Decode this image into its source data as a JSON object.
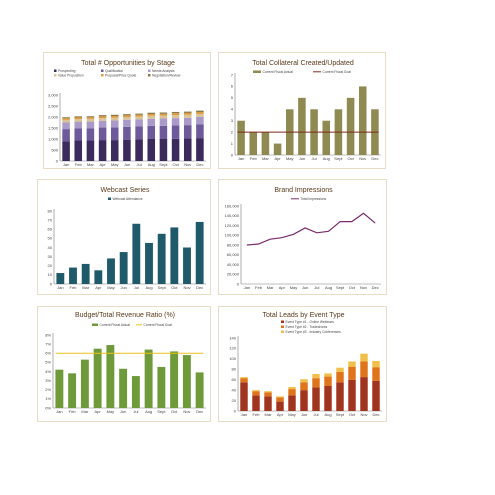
{
  "chart_data": [
    {
      "id": "opportunities",
      "type": "bar",
      "stacked": true,
      "title": "Total # Opportunities by Stage",
      "categories": [
        "Jan",
        "Feb",
        "Mar",
        "Apr",
        "May",
        "Jun",
        "Jul",
        "Aug",
        "Sept",
        "Oct",
        "Nov",
        "Dec"
      ],
      "ylim": [
        0,
        3000
      ],
      "yticks": [
        0,
        500,
        1000,
        1500,
        2000,
        2500,
        3000
      ],
      "ytick_labels": [
        "0",
        "500",
        "1,000",
        "1,500",
        "2,000",
        "2,500",
        "3,000"
      ],
      "legend_position": "top",
      "series": [
        {
          "name": "Prospecting",
          "color": "#3b2a5c",
          "values": [
            900,
            930,
            930,
            950,
            950,
            970,
            980,
            1000,
            1000,
            1010,
            1020,
            1040
          ]
        },
        {
          "name": "Qualification",
          "color": "#6d5a9a",
          "values": [
            550,
            560,
            560,
            570,
            580,
            580,
            590,
            600,
            600,
            610,
            610,
            620
          ]
        },
        {
          "name": "Needs Analysis",
          "color": "#a99ac9",
          "values": [
            300,
            300,
            300,
            310,
            310,
            320,
            320,
            320,
            330,
            330,
            330,
            340
          ]
        },
        {
          "name": "Value Proposition",
          "color": "#d9c49a",
          "values": [
            120,
            120,
            125,
            125,
            130,
            130,
            130,
            135,
            135,
            140,
            140,
            140
          ]
        },
        {
          "name": "Proposal/Price Quote",
          "color": "#e09a3c",
          "values": [
            70,
            70,
            70,
            75,
            75,
            75,
            80,
            80,
            80,
            80,
            85,
            85
          ]
        },
        {
          "name": "Negotiation/Review",
          "color": "#8a7a4a",
          "values": [
            50,
            50,
            50,
            55,
            55,
            55,
            55,
            60,
            60,
            60,
            60,
            65
          ]
        }
      ]
    },
    {
      "id": "collateral",
      "type": "bar",
      "title": "Total Collateral Created/Updated",
      "categories": [
        "Jan",
        "Feb",
        "Mar",
        "Apr",
        "May",
        "Jun",
        "Jul",
        "Aug",
        "Sept",
        "Oct",
        "Nov",
        "Dec"
      ],
      "ylim": [
        0,
        7
      ],
      "yticks": [
        0,
        1,
        2,
        3,
        4,
        5,
        6,
        7
      ],
      "legend_position": "top",
      "series": [
        {
          "name": "Current Fiscal Actual",
          "color": "#8f8a52",
          "values": [
            3,
            2,
            2,
            1,
            4,
            5,
            4,
            3,
            4,
            5,
            6,
            4
          ]
        },
        {
          "name": "Current Fiscal Goal",
          "color": "#7a2a1a",
          "kind": "line",
          "values": [
            2,
            2,
            2,
            2,
            2,
            2,
            2,
            2,
            2,
            2,
            2,
            2
          ]
        }
      ]
    },
    {
      "id": "webcast",
      "type": "bar",
      "title": "Webcast Series",
      "categories": [
        "Jan",
        "Feb",
        "Mar",
        "Apr",
        "May",
        "Jun",
        "Jul",
        "Aug",
        "Sept",
        "Oct",
        "Nov",
        "Dec"
      ],
      "ylim": [
        0,
        80
      ],
      "yticks": [
        0,
        10,
        20,
        30,
        40,
        50,
        60,
        70,
        80
      ],
      "legend_position": "top",
      "series": [
        {
          "name": "Webcast Attendance",
          "color": "#1f5a6a",
          "values": [
            12,
            18,
            22,
            15,
            28,
            35,
            66,
            45,
            55,
            62,
            40,
            68
          ]
        }
      ]
    },
    {
      "id": "brand",
      "type": "line",
      "title": "Brand Impressions",
      "categories": [
        "Jan",
        "Feb",
        "Mar",
        "Apr",
        "May",
        "Jun",
        "Jul",
        "Aug",
        "Sept",
        "Oct",
        "Nov",
        "Dec"
      ],
      "ylim": [
        0,
        160000
      ],
      "yticks": [
        0,
        20000,
        40000,
        60000,
        80000,
        100000,
        120000,
        140000,
        160000
      ],
      "ytick_labels": [
        "0",
        "20,000",
        "40,000",
        "60,000",
        "80,000",
        "100,000",
        "120,000",
        "140,000",
        "160,000"
      ],
      "legend_position": "top",
      "series": [
        {
          "name": "Total Impressions",
          "color": "#7a2a6a",
          "values": [
            80000,
            82000,
            92000,
            95000,
            102000,
            115000,
            105000,
            108000,
            128000,
            128000,
            145000,
            125000
          ]
        }
      ]
    },
    {
      "id": "budget",
      "type": "bar",
      "title": "Budget/Total Revenue Ratio (%)",
      "categories": [
        "Jan",
        "Feb",
        "Mar",
        "Apr",
        "May",
        "Jun",
        "Jul",
        "Aug",
        "Sept",
        "Oct",
        "Nov",
        "Dec"
      ],
      "ylim": [
        0,
        8
      ],
      "yticks": [
        0,
        1,
        2,
        3,
        4,
        5,
        6,
        7,
        8
      ],
      "ytick_labels": [
        "0%",
        "1%",
        "2%",
        "3%",
        "4%",
        "5%",
        "6%",
        "7%",
        "8%"
      ],
      "legend_position": "top",
      "series": [
        {
          "name": "Current Fiscal Actual",
          "color": "#6e9a3a",
          "values": [
            4.2,
            3.8,
            5.3,
            6.5,
            6.9,
            4.3,
            3.5,
            6.4,
            4.5,
            6.2,
            5.8,
            3.9
          ]
        },
        {
          "name": "Current Fiscal Goal",
          "color": "#e8c21a",
          "kind": "line",
          "values": [
            6,
            6,
            6,
            6,
            6,
            6,
            6,
            6,
            6,
            6,
            6,
            6
          ]
        }
      ]
    },
    {
      "id": "leads",
      "type": "bar",
      "stacked": true,
      "title": "Total Leads by Event Type",
      "categories": [
        "Jan",
        "Feb",
        "Mar",
        "Apr",
        "May",
        "Jun",
        "Jul",
        "Aug",
        "Sept",
        "Oct",
        "Nov",
        "Dec"
      ],
      "ylim": [
        0,
        140
      ],
      "yticks": [
        0,
        20,
        40,
        60,
        80,
        100,
        120,
        140
      ],
      "legend_position": "top-left",
      "series": [
        {
          "name": "Event Type #1 - Online Webinars",
          "color": "#a0341e",
          "values": [
            55,
            30,
            28,
            18,
            30,
            40,
            45,
            48,
            55,
            60,
            65,
            58
          ]
        },
        {
          "name": "Event Type #2 - Tradeshows",
          "color": "#e0741a",
          "values": [
            8,
            8,
            8,
            8,
            12,
            15,
            18,
            18,
            20,
            25,
            30,
            26
          ]
        },
        {
          "name": "Event Type #3 - Industry Conferences",
          "color": "#f0c04a",
          "values": [
            2,
            2,
            2,
            2,
            4,
            6,
            8,
            6,
            8,
            10,
            15,
            12
          ]
        }
      ]
    }
  ]
}
